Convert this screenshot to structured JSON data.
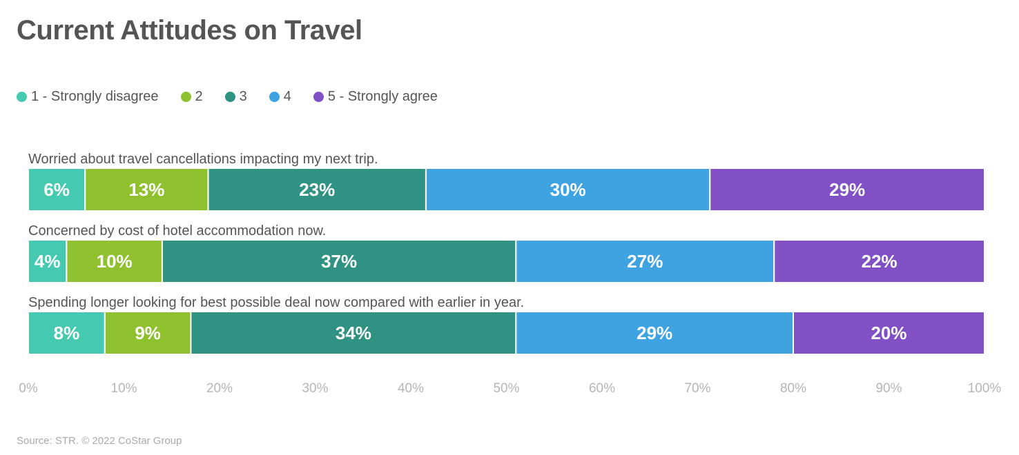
{
  "title": "Current Attitudes on Travel",
  "source": "Source: STR. © 2022 CoStar Group",
  "legend": [
    {
      "label": "1 - Strongly disagree",
      "color": "#45c9b0"
    },
    {
      "label": "2",
      "color": "#8fc02e"
    },
    {
      "label": "3",
      "color": "#309282"
    },
    {
      "label": "4",
      "color": "#3ea3e0"
    },
    {
      "label": "5 - Strongly agree",
      "color": "#8150c4"
    }
  ],
  "chart_data": {
    "type": "bar",
    "orientation": "horizontal",
    "stacked": true,
    "title": "Current Attitudes on Travel",
    "xlim": [
      0,
      100
    ],
    "x_ticks": [
      "0%",
      "10%",
      "20%",
      "30%",
      "40%",
      "50%",
      "60%",
      "70%",
      "80%",
      "90%",
      "100%"
    ],
    "categories": [
      "Worried about travel cancellations impacting my next trip.",
      "Concerned by cost of hotel accommodation now.",
      "Spending longer looking for best possible deal now compared with earlier in year."
    ],
    "series": [
      {
        "name": "1 - Strongly disagree",
        "color": "#45c9b0",
        "values": [
          6,
          4,
          8
        ]
      },
      {
        "name": "2",
        "color": "#8fc02e",
        "values": [
          13,
          10,
          9
        ]
      },
      {
        "name": "3",
        "color": "#309282",
        "values": [
          23,
          37,
          34
        ]
      },
      {
        "name": "4",
        "color": "#3ea3e0",
        "values": [
          30,
          27,
          29
        ]
      },
      {
        "name": "5 - Strongly agree",
        "color": "#8150c4",
        "values": [
          29,
          22,
          20
        ]
      }
    ],
    "data_labels": [
      [
        "6%",
        "4%",
        "8%"
      ],
      [
        "13%",
        "10%",
        "9%"
      ],
      [
        "23%",
        "37%",
        "34%"
      ],
      [
        "30%",
        "27%",
        "29%"
      ],
      [
        "29%",
        "22%",
        "20%"
      ]
    ]
  }
}
